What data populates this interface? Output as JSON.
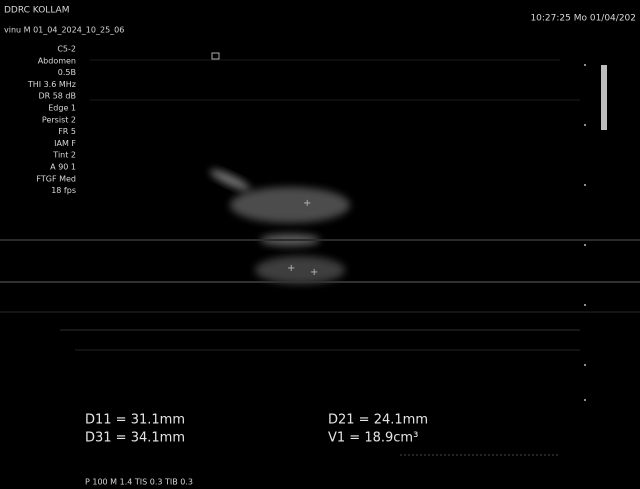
{
  "header": {
    "clinic": "DDRC KOLLAM",
    "patient": "vinu    M   01_04_2024_10_25_06",
    "datetime": "10:27:25  Mo  01/04/202"
  },
  "parameters": [
    "C5-2",
    "Abdomen",
    "0.5B",
    "THI 3.6 MHz",
    "DR 58 dB",
    "Edge 1",
    "Persist 2",
    "FR 5",
    "IAM F",
    "Tint 2",
    "A 90 1",
    "FTGF Med",
    "18 fps"
  ],
  "measurements": {
    "left": [
      "D11 = 31.1mm",
      "D31 = 34.1mm"
    ],
    "right": [
      "D21 = 24.1mm",
      "V1 = 18.9cm³"
    ]
  },
  "footer": "P 100    M 1.4        TIS 0.3   TIB 0.3"
}
